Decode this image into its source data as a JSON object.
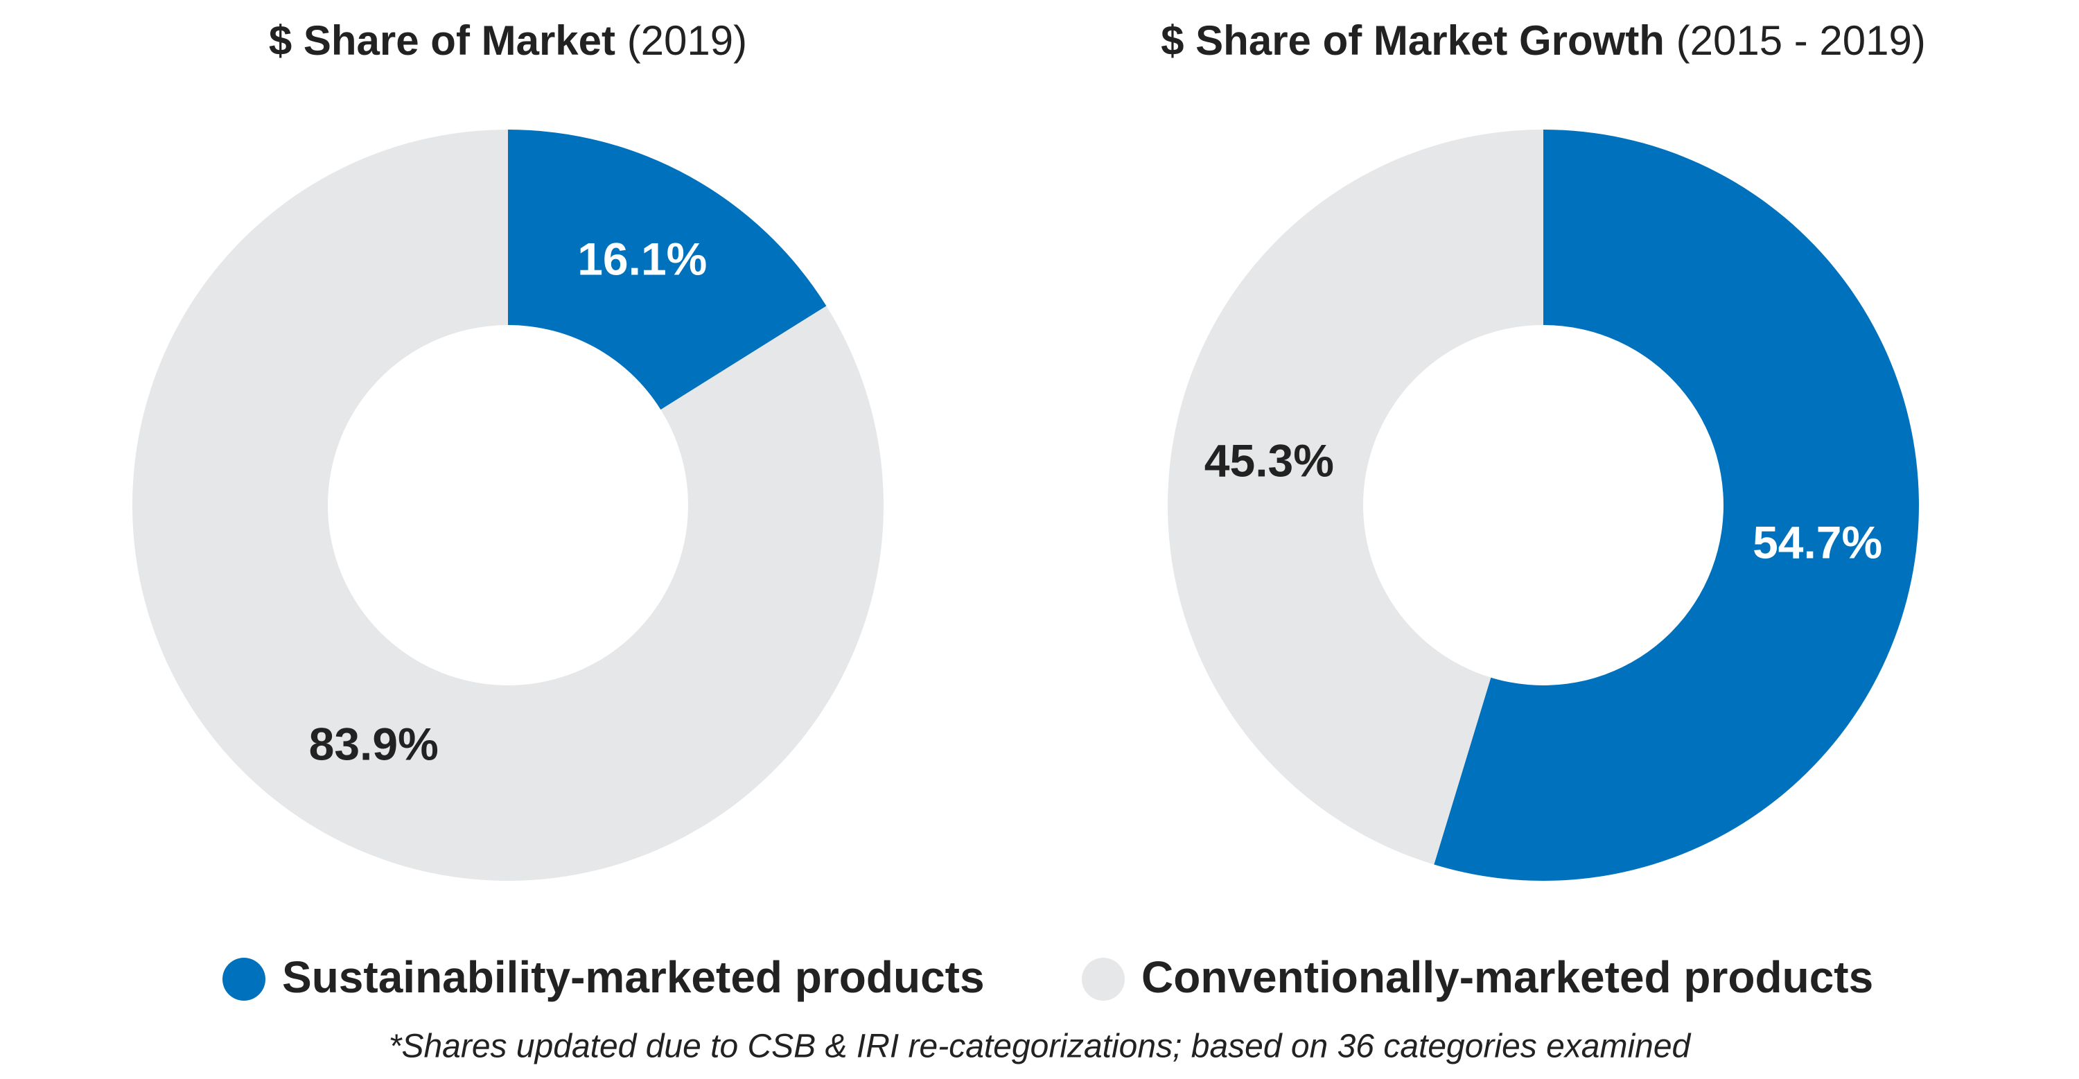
{
  "chart_data": [
    {
      "type": "donut",
      "title": "$ Share of Market",
      "subtitle": "(2019)",
      "categories": [
        "Sustainability-marketed products",
        "Conventionally-marketed products"
      ],
      "values": [
        16.1,
        83.9
      ],
      "value_labels": [
        "16.1%",
        "83.9%"
      ],
      "colors": [
        "#0071bc",
        "#e6e7e9"
      ]
    },
    {
      "type": "donut",
      "title": "$ Share of Market Growth",
      "subtitle": "(2015 - 2019)",
      "categories": [
        "Sustainability-marketed products",
        "Conventionally-marketed products"
      ],
      "values": [
        54.7,
        45.3
      ],
      "value_labels": [
        "54.7%",
        "45.3%"
      ],
      "colors": [
        "#0071bc",
        "#e6e7e9"
      ]
    }
  ],
  "footnote": "*Shares updated due to CSB & IRI re-categorizations; based on 36 categories examined"
}
